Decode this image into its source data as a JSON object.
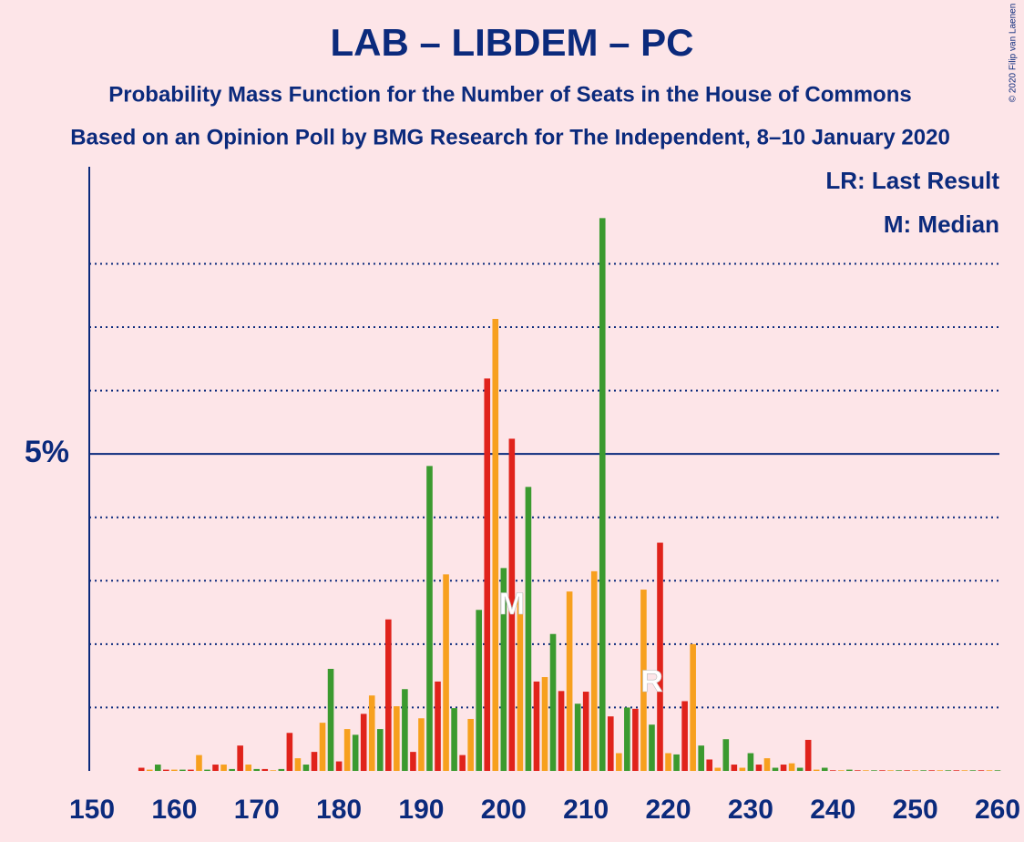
{
  "chart_data": {
    "type": "bar",
    "title": "LAB – LIBDEM – PC",
    "subtitle": "Probability Mass Function for the Number of Seats in the House of Commons",
    "subtitle2": "Based on an Opinion Poll by BMG Research for The Independent, 8–10 January 2020",
    "copyright": "© 2020 Filip van Laenen",
    "legend": [
      "LR: Last Result",
      "M: Median"
    ],
    "color_cycle": [
      "#e0231b",
      "#f7a01e",
      "#3b9a2f"
    ],
    "x": [
      150,
      151,
      152,
      153,
      154,
      155,
      156,
      157,
      158,
      159,
      160,
      161,
      162,
      163,
      164,
      165,
      166,
      167,
      168,
      169,
      170,
      171,
      172,
      173,
      174,
      175,
      176,
      177,
      178,
      179,
      180,
      181,
      182,
      183,
      184,
      185,
      186,
      187,
      188,
      189,
      190,
      191,
      192,
      193,
      194,
      195,
      196,
      197,
      198,
      199,
      200,
      201,
      202,
      203,
      204,
      205,
      206,
      207,
      208,
      209,
      210,
      211,
      212,
      213,
      214,
      215,
      216,
      217,
      218,
      219,
      220,
      221,
      222,
      223,
      224,
      225,
      226,
      227,
      228,
      229,
      230,
      231,
      232,
      233,
      234,
      235,
      236,
      237,
      238,
      239,
      240,
      241,
      242,
      243,
      244,
      245,
      246,
      247,
      248,
      249,
      250,
      251,
      252,
      253,
      254,
      255,
      256,
      257,
      258,
      259,
      260
    ],
    "values": [
      0,
      0,
      0,
      0,
      0,
      0,
      0.05,
      0.02,
      0.1,
      0.02,
      0.02,
      0.02,
      0.02,
      0.25,
      0.02,
      0.1,
      0.1,
      0.03,
      0.4,
      0.1,
      0.03,
      0.03,
      0.01,
      0.03,
      0.6,
      0.2,
      0.1,
      0.3,
      0.76,
      1.61,
      0.15,
      0.66,
      0.57,
      0.9,
      1.19,
      0.66,
      2.39,
      1.02,
      1.29,
      0.3,
      0.83,
      4.81,
      1.41,
      3.1,
      0.99,
      0.25,
      0.82,
      2.54,
      6.19,
      7.13,
      3.2,
      5.24,
      2.8,
      4.48,
      1.41,
      1.48,
      2.16,
      1.26,
      2.83,
      1.06,
      1.25,
      3.15,
      8.72,
      0.86,
      0.28,
      1.0,
      0.98,
      2.86,
      0.73,
      3.6,
      0.28,
      0.26,
      1.1,
      2.0,
      0.4,
      0.18,
      0.05,
      0.5,
      0.1,
      0.05,
      0.28,
      0.1,
      0.2,
      0.05,
      0.1,
      0.12,
      0.05,
      0.49,
      0.02,
      0.05,
      0.01,
      0.01,
      0.02,
      0.01,
      0.01,
      0.01,
      0.01,
      0.01,
      0.01,
      0.01,
      0.01,
      0.01,
      0.01,
      0.01,
      0.01,
      0.01,
      0.01,
      0.01,
      0.01,
      0.01,
      0.01
    ],
    "annotations": [
      {
        "text": "M",
        "x": 201
      },
      {
        "text": "R",
        "x": 218
      }
    ],
    "xlim": [
      150,
      260
    ],
    "xticks": [
      150,
      160,
      170,
      180,
      190,
      200,
      210,
      220,
      230,
      240,
      250,
      260
    ],
    "ylim": [
      0,
      9.53
    ],
    "yticks": [
      {
        "value": 5,
        "label": "5%"
      }
    ],
    "gridlines": [
      1,
      2,
      3,
      4,
      6,
      7,
      8
    ]
  }
}
